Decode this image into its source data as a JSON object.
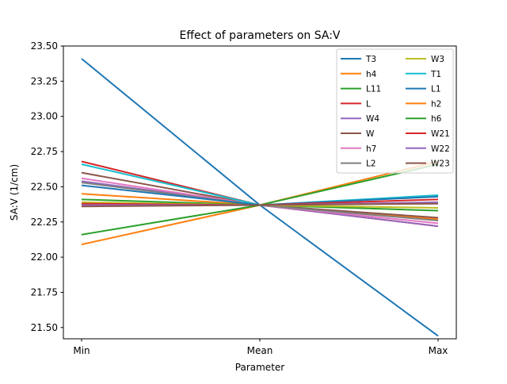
{
  "chart_data": {
    "type": "line",
    "title": "Effect of parameters on SA:V",
    "xlabel": "Parameter",
    "ylabel": "SA:V (1/cm)",
    "categories": [
      "Min",
      "Mean",
      "Max"
    ],
    "ylim": [
      21.42,
      23.5
    ],
    "yticks": [
      "21.50",
      "21.75",
      "22.00",
      "22.25",
      "22.50",
      "22.75",
      "23.00",
      "23.25",
      "23.50"
    ],
    "grid": false,
    "legend_position": "top-right",
    "legend_columns": 2,
    "series": [
      {
        "name": "T3",
        "color": "#1f77b4",
        "values": [
          23.41,
          22.37,
          21.44
        ]
      },
      {
        "name": "h4",
        "color": "#ff7f0e",
        "values": [
          22.45,
          22.37,
          22.27
        ]
      },
      {
        "name": "L11",
        "color": "#2ca02c",
        "values": [
          22.41,
          22.37,
          22.33
        ]
      },
      {
        "name": "L",
        "color": "#d62728",
        "values": [
          22.68,
          22.37,
          22.22
        ]
      },
      {
        "name": "W4",
        "color": "#9467bd",
        "values": [
          22.54,
          22.37,
          22.22
        ]
      },
      {
        "name": "W",
        "color": "#8c564b",
        "values": [
          22.6,
          22.37,
          22.28
        ]
      },
      {
        "name": "h7",
        "color": "#e377c2",
        "values": [
          22.56,
          22.37,
          22.24
        ]
      },
      {
        "name": "L2",
        "color": "#7f7f7f",
        "values": [
          22.53,
          22.37,
          22.26
        ]
      },
      {
        "name": "W3",
        "color": "#bcbd22",
        "values": [
          22.39,
          22.37,
          22.35
        ]
      },
      {
        "name": "T1",
        "color": "#17becf",
        "values": [
          22.66,
          22.37,
          22.44
        ]
      },
      {
        "name": "L1",
        "color": "#1f77b4",
        "values": [
          22.51,
          22.37,
          22.43
        ]
      },
      {
        "name": "h2",
        "color": "#ff7f0e",
        "values": [
          22.09,
          22.37,
          22.68
        ]
      },
      {
        "name": "h6",
        "color": "#2ca02c",
        "values": [
          22.16,
          22.37,
          22.66
        ]
      },
      {
        "name": "W21",
        "color": "#d62728",
        "values": [
          22.38,
          22.37,
          22.41
        ]
      },
      {
        "name": "W22",
        "color": "#9467bd",
        "values": [
          22.37,
          22.37,
          22.39
        ]
      },
      {
        "name": "W23",
        "color": "#8c564b",
        "values": [
          22.36,
          22.37,
          22.38
        ]
      }
    ]
  }
}
